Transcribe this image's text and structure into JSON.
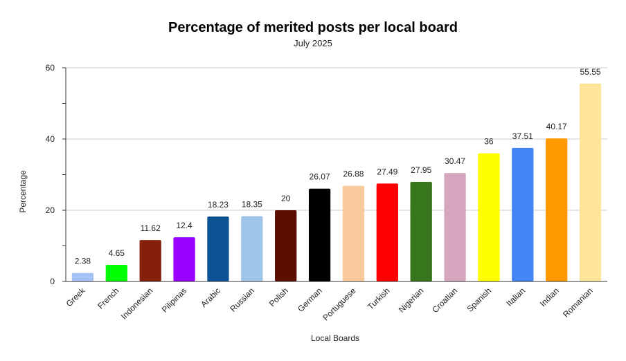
{
  "chart_data": {
    "type": "bar",
    "title": "Percentage of merited posts per local board",
    "subtitle": "July 2025",
    "xlabel": "Local Boards",
    "ylabel": "Percentage",
    "ylim": [
      0,
      60
    ],
    "yticks": [
      0,
      20,
      40,
      60
    ],
    "grid": true,
    "legend": "none",
    "categories": [
      "Greek",
      "French",
      "Indonesian",
      "Pilipinas",
      "Arabic",
      "Russian",
      "Polish",
      "German",
      "Portuguese",
      "Turkish",
      "Nigerian",
      "Croatian",
      "Spanish",
      "Italian",
      "Indian",
      "Romanian"
    ],
    "values": [
      2.38,
      4.65,
      11.62,
      12.4,
      18.23,
      18.35,
      20,
      26.07,
      26.88,
      27.49,
      27.95,
      30.47,
      36,
      37.51,
      40.17,
      55.55
    ],
    "colors": [
      "#a4c2f4",
      "#00ff00",
      "#85200c",
      "#9900ff",
      "#0b5394",
      "#9fc5e8",
      "#5b0f00",
      "#000000",
      "#f9cb9c",
      "#ff0000",
      "#38761d",
      "#d5a6bd",
      "#ffff00",
      "#4285f4",
      "#ff9900",
      "#ffe599"
    ]
  }
}
